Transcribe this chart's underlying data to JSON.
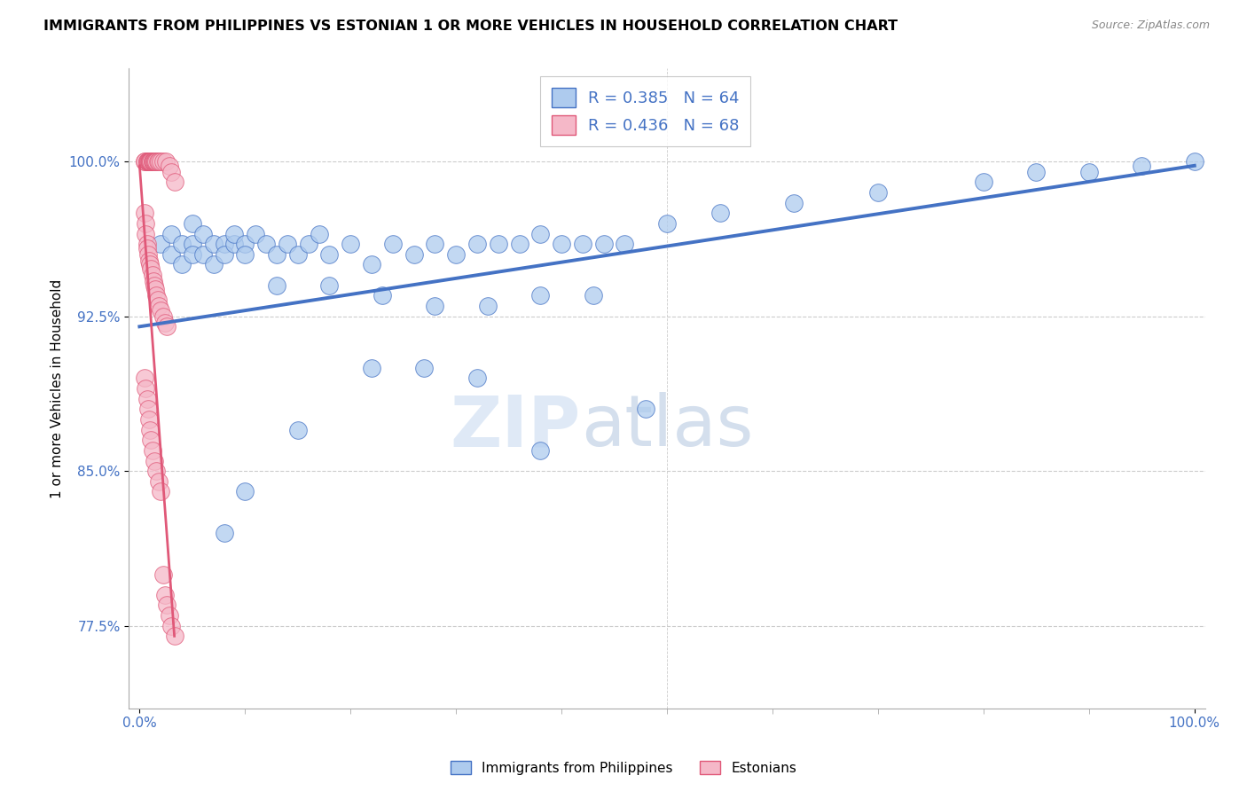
{
  "title": "IMMIGRANTS FROM PHILIPPINES VS ESTONIAN 1 OR MORE VEHICLES IN HOUSEHOLD CORRELATION CHART",
  "source": "Source: ZipAtlas.com",
  "ylabel": "1 or more Vehicles in Household",
  "xlabel": "",
  "x_tick_labels": [
    "0.0%",
    "100.0%"
  ],
  "y_tick_labels": [
    "77.5%",
    "85.0%",
    "92.5%",
    "100.0%"
  ],
  "y_tick_values": [
    0.775,
    0.85,
    0.925,
    1.0
  ],
  "x_lim": [
    -0.01,
    1.01
  ],
  "y_lim": [
    0.735,
    1.045
  ],
  "watermark_zip": "ZIP",
  "watermark_atlas": "atlas",
  "blue_R": 0.385,
  "blue_N": 64,
  "pink_R": 0.436,
  "pink_N": 68,
  "blue_color": "#aecbee",
  "pink_color": "#f5b8c8",
  "blue_line_color": "#4472c4",
  "pink_line_color": "#e05878",
  "legend_blue_text": "R = 0.385   N = 64",
  "legend_pink_text": "R = 0.436   N = 68",
  "blue_legend_label": "Immigrants from Philippines",
  "pink_legend_label": "Estonians",
  "blue_scatter_x": [
    0.02,
    0.03,
    0.03,
    0.04,
    0.04,
    0.05,
    0.05,
    0.05,
    0.06,
    0.06,
    0.07,
    0.07,
    0.08,
    0.08,
    0.09,
    0.09,
    0.1,
    0.1,
    0.11,
    0.12,
    0.13,
    0.14,
    0.15,
    0.16,
    0.17,
    0.18,
    0.2,
    0.22,
    0.24,
    0.26,
    0.28,
    0.3,
    0.32,
    0.34,
    0.36,
    0.38,
    0.4,
    0.42,
    0.44,
    0.46,
    0.13,
    0.18,
    0.23,
    0.28,
    0.33,
    0.38,
    0.43,
    0.22,
    0.27,
    0.32,
    0.48,
    0.38,
    0.15,
    0.1,
    0.08,
    0.5,
    0.55,
    0.62,
    0.7,
    0.8,
    0.85,
    0.9,
    0.95,
    1.0
  ],
  "blue_scatter_y": [
    0.96,
    0.955,
    0.965,
    0.95,
    0.96,
    0.96,
    0.97,
    0.955,
    0.965,
    0.955,
    0.96,
    0.95,
    0.96,
    0.955,
    0.96,
    0.965,
    0.96,
    0.955,
    0.965,
    0.96,
    0.955,
    0.96,
    0.955,
    0.96,
    0.965,
    0.955,
    0.96,
    0.95,
    0.96,
    0.955,
    0.96,
    0.955,
    0.96,
    0.96,
    0.96,
    0.965,
    0.96,
    0.96,
    0.96,
    0.96,
    0.94,
    0.94,
    0.935,
    0.93,
    0.93,
    0.935,
    0.935,
    0.9,
    0.9,
    0.895,
    0.88,
    0.86,
    0.87,
    0.84,
    0.82,
    0.97,
    0.975,
    0.98,
    0.985,
    0.99,
    0.995,
    0.995,
    0.998,
    1.0
  ],
  "pink_scatter_x": [
    0.005,
    0.005,
    0.007,
    0.007,
    0.008,
    0.008,
    0.009,
    0.009,
    0.01,
    0.01,
    0.01,
    0.01,
    0.011,
    0.011,
    0.012,
    0.012,
    0.013,
    0.013,
    0.014,
    0.015,
    0.015,
    0.016,
    0.017,
    0.018,
    0.02,
    0.022,
    0.025,
    0.028,
    0.03,
    0.033,
    0.005,
    0.006,
    0.006,
    0.007,
    0.007,
    0.008,
    0.009,
    0.01,
    0.011,
    0.012,
    0.013,
    0.014,
    0.015,
    0.016,
    0.017,
    0.018,
    0.02,
    0.022,
    0.024,
    0.026,
    0.005,
    0.006,
    0.007,
    0.008,
    0.009,
    0.01,
    0.011,
    0.012,
    0.014,
    0.016,
    0.018,
    0.02,
    0.022,
    0.024,
    0.026,
    0.028,
    0.03,
    0.033
  ],
  "pink_scatter_y": [
    1.0,
    1.0,
    1.0,
    1.0,
    1.0,
    1.0,
    1.0,
    1.0,
    1.0,
    1.0,
    1.0,
    1.0,
    1.0,
    1.0,
    1.0,
    1.0,
    1.0,
    1.0,
    1.0,
    1.0,
    1.0,
    1.0,
    1.0,
    1.0,
    1.0,
    1.0,
    1.0,
    0.998,
    0.995,
    0.99,
    0.975,
    0.97,
    0.965,
    0.96,
    0.958,
    0.955,
    0.952,
    0.95,
    0.948,
    0.945,
    0.942,
    0.94,
    0.938,
    0.935,
    0.933,
    0.93,
    0.928,
    0.925,
    0.922,
    0.92,
    0.895,
    0.89,
    0.885,
    0.88,
    0.875,
    0.87,
    0.865,
    0.86,
    0.855,
    0.85,
    0.845,
    0.84,
    0.8,
    0.79,
    0.785,
    0.78,
    0.775,
    0.77
  ],
  "background_color": "#ffffff",
  "grid_color": "#cccccc",
  "title_fontsize": 11.5,
  "axis_label_fontsize": 11,
  "tick_fontsize": 11,
  "legend_fontsize": 13,
  "blue_line_x_start": 0.0,
  "blue_line_x_end": 1.0,
  "blue_line_y_start": 0.92,
  "blue_line_y_end": 0.998,
  "pink_line_x_start": 0.0,
  "pink_line_x_end": 0.033,
  "pink_line_y_start": 0.998,
  "pink_line_y_end": 0.77
}
